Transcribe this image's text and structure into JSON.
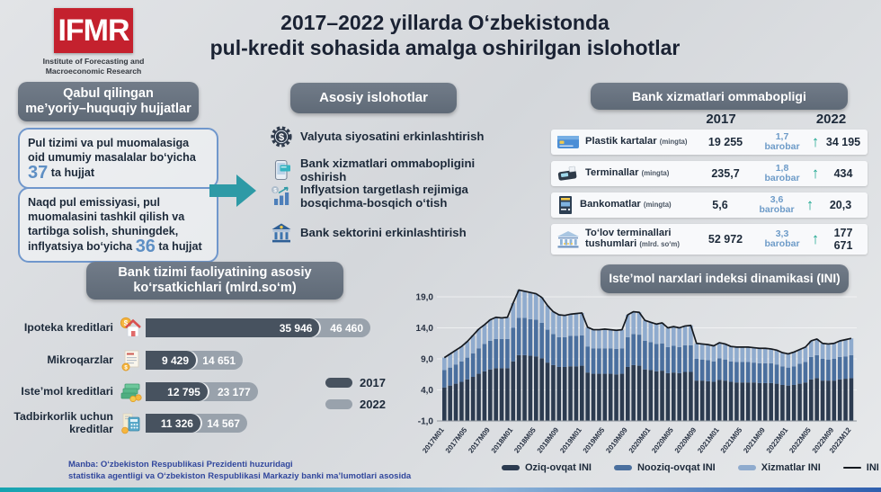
{
  "colors": {
    "logo_red": "#c4212e",
    "navy_text": "#1d2a3a",
    "accent_blue": "#5e8fc4",
    "accent_teal": "#2e9aa6",
    "growth_green": "#1ca68f",
    "pill_gray": "#68737f",
    "bar_2017": "#47525f",
    "bar_2022": "#99a2ac"
  },
  "page": {
    "logo_abbr": "IFMR",
    "logo_sub1": "Institute of Forecasting and",
    "logo_sub2": "Macroeconomic Research",
    "title_line1": "2017–2022 yillarda O‘zbekistonda",
    "title_line2": "pul-kredit sohasida amalga oshirilgan islohotlar"
  },
  "documents": {
    "header_line1": "Qabul qilingan",
    "header_line2": "me’yoriy–huquqiy hujjatlar",
    "box1_text": "Pul tizimi va pul muomalasiga oid umumiy masalalar bo‘yicha ",
    "box1_count": "37",
    "box1_suffix": " ta hujjat",
    "box2_text": "Naqd pul emissiyasi, pul muomalasini tashkil qilish va tartibga solish, shuningdek, inflyatsiya bo‘yicha ",
    "box2_count": "36",
    "box2_suffix": " ta hujjat"
  },
  "reforms": {
    "header": "Asosiy islohotlar",
    "items": [
      {
        "label": "Valyuta siyosatini erkinlashtirish"
      },
      {
        "label": "Bank xizmatlari ommabopligini oshirish"
      },
      {
        "label": "Inflyatsion targetlash  rejimiga bosqichma-bosqich o‘tish"
      },
      {
        "label": "Bank sektorini erkinlashtirish"
      }
    ]
  },
  "bank_services": {
    "header": "Bank xizmatlari ommabopligi",
    "col_2017": "2017",
    "col_2022": "2022",
    "rows": [
      {
        "label": "Plastik kartalar",
        "unit": "(mingta)",
        "v2017": "19 255",
        "growth": "1,7",
        "growth_word": "barobar",
        "arrow": "↑",
        "v2022": "34 195"
      },
      {
        "label": "Terminallar",
        "unit": "(mingta)",
        "v2017": "235,7",
        "growth": "1,8",
        "growth_word": "barobar",
        "arrow": "↑",
        "v2022": "434"
      },
      {
        "label": "Bankomatlar",
        "unit": "(mingta)",
        "v2017": "5,6",
        "growth": "3,6",
        "growth_word": "barobar",
        "arrow": "↑",
        "v2022": "20,3"
      },
      {
        "label": "To‘lov terminallari tushumlari",
        "unit": "(mlrd. so‘m)",
        "v2017": "52 972",
        "growth": "3,3",
        "growth_word": "barobar",
        "arrow": "↑",
        "v2022": "177 671"
      }
    ]
  },
  "kpi": {
    "header_line1": "Bank tizimi faoliyatining asosiy",
    "header_line2": "ko‘rsatkichlari (mlrd.so‘m)"
  },
  "ini": {
    "header": "Iste’mol narxlari indeksi dinamikasi (INI)"
  },
  "footer": {
    "line1": "Manba:  O‘zbekiston Respublikasi Prezidenti huzuridagi",
    "line2": "statistika agentligi va O‘zbekiston Respublikasi Markaziy banki ma’lumotlari asosida"
  },
  "chart_data": [
    {
      "type": "bar",
      "orientation": "horizontal",
      "title": "Bank tizimi faoliyatining asosiy ko‘rsatkichlari (mlrd.so‘m)",
      "categories": [
        "Ipoteka kreditlari",
        "Mikroqarzlar",
        "Iste’mol kreditlari",
        "Tadbirkorlik uchun kreditlar"
      ],
      "xmax": 46460,
      "series": [
        {
          "name": "2017",
          "color": "#47525f",
          "values": [
            35946,
            9429,
            12795,
            11326
          ],
          "labels": [
            "35 946",
            "9 429",
            "12 795",
            "11 326"
          ]
        },
        {
          "name": "2022",
          "color": "#99a2ac",
          "values": [
            46460,
            14651,
            23177,
            14567
          ],
          "labels": [
            "46 460",
            "14 651",
            "23 177",
            "14 567"
          ]
        }
      ],
      "legend_position": "right"
    },
    {
      "type": "bar",
      "subtype": "stacked_with_line",
      "title": "Iste’mol narxlari indeksi dinamikasi (INI)",
      "ylim": [
        -1,
        19
      ],
      "yticks": [
        {
          "v": 19,
          "label": "19,0"
        },
        {
          "v": 14,
          "label": "14,0"
        },
        {
          "v": 9,
          "label": "9,0"
        },
        {
          "v": 4,
          "label": "4,0"
        },
        {
          "v": -1,
          "label": "-1,0"
        }
      ],
      "x_tick_indices": [
        0,
        4,
        8,
        12,
        16,
        20,
        24,
        28,
        32,
        36,
        40,
        44,
        48,
        52,
        56,
        60,
        64,
        68,
        71
      ],
      "x_tick_labels": [
        "2017M01",
        "2017M05",
        "2017M09",
        "2018M01",
        "2018M05",
        "2018M09",
        "2019M01",
        "2019M05",
        "2019M09",
        "2020M01",
        "2020M05",
        "2020M09",
        "2021M01",
        "2021M05",
        "2021M09",
        "2022M01",
        "2022M05",
        "2022M09",
        "2022M12"
      ],
      "series": [
        {
          "name": "Oziq-ovqat INI",
          "color": "#2c3b50",
          "values": [
            4.4,
            4.7,
            5.0,
            5.3,
            5.7,
            6.1,
            6.6,
            7.0,
            7.3,
            7.5,
            7.5,
            7.5,
            8.6,
            9.6,
            9.6,
            9.5,
            9.4,
            9.1,
            8.4,
            8.0,
            7.7,
            7.7,
            7.8,
            7.8,
            7.9,
            6.8,
            6.6,
            6.6,
            6.6,
            6.6,
            6.5,
            6.6,
            7.7,
            8.0,
            7.9,
            7.3,
            7.2,
            7.0,
            7.1,
            6.7,
            6.8,
            6.7,
            6.9,
            6.9,
            5.5,
            5.5,
            5.4,
            5.3,
            5.6,
            5.5,
            5.3,
            5.2,
            5.2,
            5.2,
            5.2,
            5.1,
            5.1,
            5.1,
            5.0,
            4.8,
            4.7,
            4.8,
            5.0,
            5.2,
            5.7,
            5.9,
            5.5,
            5.5,
            5.5,
            5.7,
            5.8,
            5.9
          ]
        },
        {
          "name": "Nooziq-ovqat INI",
          "color": "#4a6f9e",
          "values": [
            2.8,
            2.9,
            3.1,
            3.3,
            3.5,
            3.8,
            4.1,
            4.4,
            4.6,
            4.7,
            4.7,
            4.7,
            5.4,
            6.0,
            6.0,
            5.9,
            5.9,
            5.7,
            5.3,
            5.0,
            4.8,
            4.8,
            4.9,
            4.9,
            4.9,
            4.2,
            4.1,
            4.1,
            4.1,
            4.1,
            4.1,
            4.1,
            4.8,
            5.0,
            5.0,
            4.6,
            4.5,
            4.4,
            4.4,
            4.2,
            4.3,
            4.2,
            4.3,
            4.3,
            3.5,
            3.4,
            3.4,
            3.3,
            3.5,
            3.4,
            3.3,
            3.3,
            3.3,
            3.3,
            3.2,
            3.2,
            3.2,
            3.2,
            3.1,
            3.0,
            2.9,
            3.0,
            3.2,
            3.3,
            3.6,
            3.7,
            3.5,
            3.4,
            3.5,
            3.6,
            3.6,
            3.7
          ]
        },
        {
          "name": "Xizmatlar INI",
          "color": "#8fabce",
          "values": [
            2.0,
            2.2,
            2.3,
            2.4,
            2.6,
            2.9,
            3.1,
            3.1,
            3.4,
            3.5,
            3.4,
            3.5,
            4.0,
            4.5,
            4.3,
            4.3,
            4.2,
            4.1,
            3.9,
            3.6,
            3.6,
            3.5,
            3.5,
            3.6,
            3.6,
            3.1,
            3.0,
            3.0,
            3.1,
            3.0,
            3.0,
            3.0,
            3.6,
            3.6,
            3.6,
            3.3,
            3.2,
            3.2,
            3.3,
            3.1,
            3.1,
            3.1,
            3.1,
            3.2,
            2.5,
            2.5,
            2.5,
            2.5,
            2.5,
            2.5,
            2.4,
            2.4,
            2.4,
            2.4,
            2.4,
            2.4,
            2.4,
            2.3,
            2.3,
            2.2,
            2.2,
            2.3,
            2.3,
            2.4,
            2.6,
            2.6,
            2.5,
            2.5,
            2.5,
            2.6,
            2.7,
            2.7
          ]
        }
      ],
      "line": {
        "name": "INI",
        "color": "#15191f",
        "values": [
          9.2,
          9.8,
          10.4,
          11.0,
          11.8,
          12.8,
          13.8,
          14.5,
          15.3,
          15.7,
          15.6,
          15.7,
          18.0,
          20.1,
          19.9,
          19.7,
          19.5,
          18.9,
          17.6,
          16.6,
          16.1,
          16.0,
          16.2,
          16.3,
          16.4,
          14.1,
          13.7,
          13.7,
          13.8,
          13.7,
          13.6,
          13.7,
          16.1,
          16.6,
          16.5,
          15.2,
          14.9,
          14.6,
          14.8,
          14.0,
          14.2,
          14.0,
          14.3,
          14.4,
          11.5,
          11.4,
          11.3,
          11.1,
          11.6,
          11.4,
          11.0,
          10.9,
          10.9,
          10.9,
          10.8,
          10.7,
          10.7,
          10.6,
          10.4,
          10.0,
          9.8,
          10.1,
          10.5,
          10.9,
          11.9,
          12.2,
          11.5,
          11.4,
          11.5,
          11.9,
          12.1,
          12.3
        ]
      }
    }
  ]
}
